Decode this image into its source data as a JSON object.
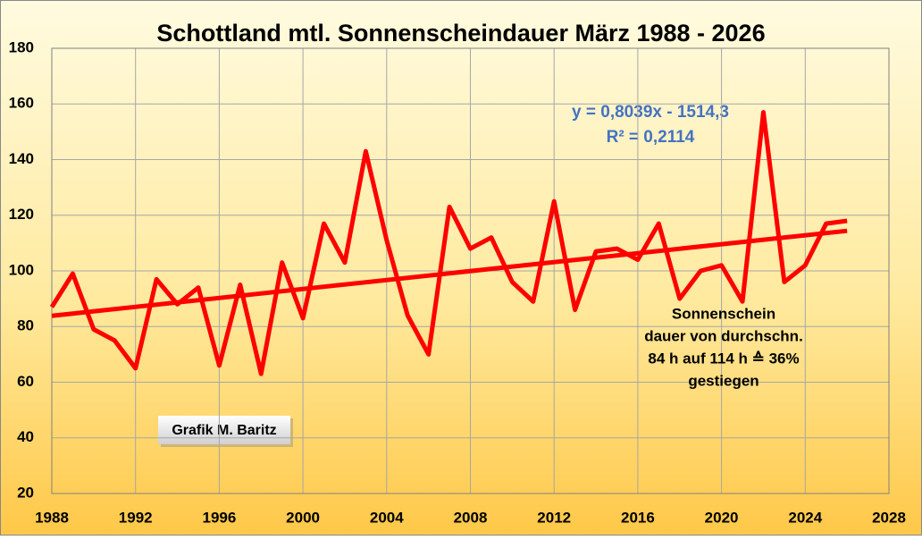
{
  "chart_data": {
    "type": "line",
    "title": "Schottland mtl. Sonnenscheindauer März 1988 - 2026",
    "x": [
      1988,
      1989,
      1990,
      1991,
      1992,
      1993,
      1994,
      1995,
      1996,
      1997,
      1998,
      1999,
      2000,
      2001,
      2002,
      2003,
      2004,
      2005,
      2006,
      2007,
      2008,
      2009,
      2010,
      2011,
      2012,
      2013,
      2014,
      2015,
      2016,
      2017,
      2018,
      2019,
      2020,
      2021,
      2022,
      2023,
      2024,
      2025,
      2026
    ],
    "series": [
      {
        "color": "#ff0000",
        "values": [
          87,
          99,
          79,
          75,
          65,
          97,
          88,
          94,
          66,
          95,
          63,
          103,
          83,
          117,
          103,
          143,
          111,
          84,
          70,
          123,
          108,
          112,
          96,
          89,
          125,
          86,
          107,
          108,
          104,
          117,
          90,
          100,
          102,
          89,
          157,
          96,
          102,
          117,
          118
        ]
      }
    ],
    "trend": {
      "x": [
        1988,
        2026
      ],
      "values": [
        83.85,
        114.4
      ],
      "color": "#ff0000"
    },
    "equation": "y = 0,8039x - 1514,3",
    "r_squared": "R² = 0,2114",
    "note": [
      "Sonnenschein",
      "dauer von durchschn.",
      "84 h auf 114 h ≙ 36%",
      "gestiegen"
    ],
    "credit": "Grafik M. Baritz",
    "xlim": [
      1988,
      2028
    ],
    "xticks": [
      1988,
      1992,
      1996,
      2000,
      2004,
      2008,
      2012,
      2016,
      2020,
      2024,
      2028
    ],
    "ylim": [
      20,
      180
    ],
    "yticks": [
      20,
      40,
      60,
      80,
      100,
      120,
      140,
      160,
      180
    ],
    "grid": true
  }
}
